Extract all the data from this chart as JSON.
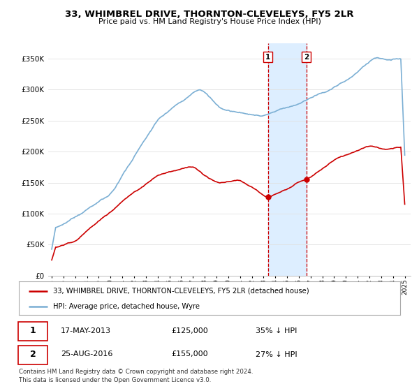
{
  "title": "33, WHIMBREL DRIVE, THORNTON-CLEVELEYS, FY5 2LR",
  "subtitle": "Price paid vs. HM Land Registry's House Price Index (HPI)",
  "red_label": "33, WHIMBREL DRIVE, THORNTON-CLEVELEYS, FY5 2LR (detached house)",
  "blue_label": "HPI: Average price, detached house, Wyre",
  "sale1_date": "17-MAY-2013",
  "sale1_price": 125000,
  "sale1_pct": "35% ↓ HPI",
  "sale2_date": "25-AUG-2016",
  "sale2_price": 155000,
  "sale2_pct": "27% ↓ HPI",
  "footer": "Contains HM Land Registry data © Crown copyright and database right 2024.\nThis data is licensed under the Open Government Licence v3.0.",
  "ylim": [
    0,
    375000
  ],
  "yticks": [
    0,
    50000,
    100000,
    150000,
    200000,
    250000,
    300000,
    350000
  ],
  "xlim_start": 1995.0,
  "xlim_end": 2025.5,
  "red_color": "#cc0000",
  "blue_color": "#7bafd4",
  "shade_color": "#ddeeff",
  "box_color": "#cc0000",
  "grid_color": "#e0e0e0",
  "sale1_year": 2013.37,
  "sale2_year": 2016.64
}
